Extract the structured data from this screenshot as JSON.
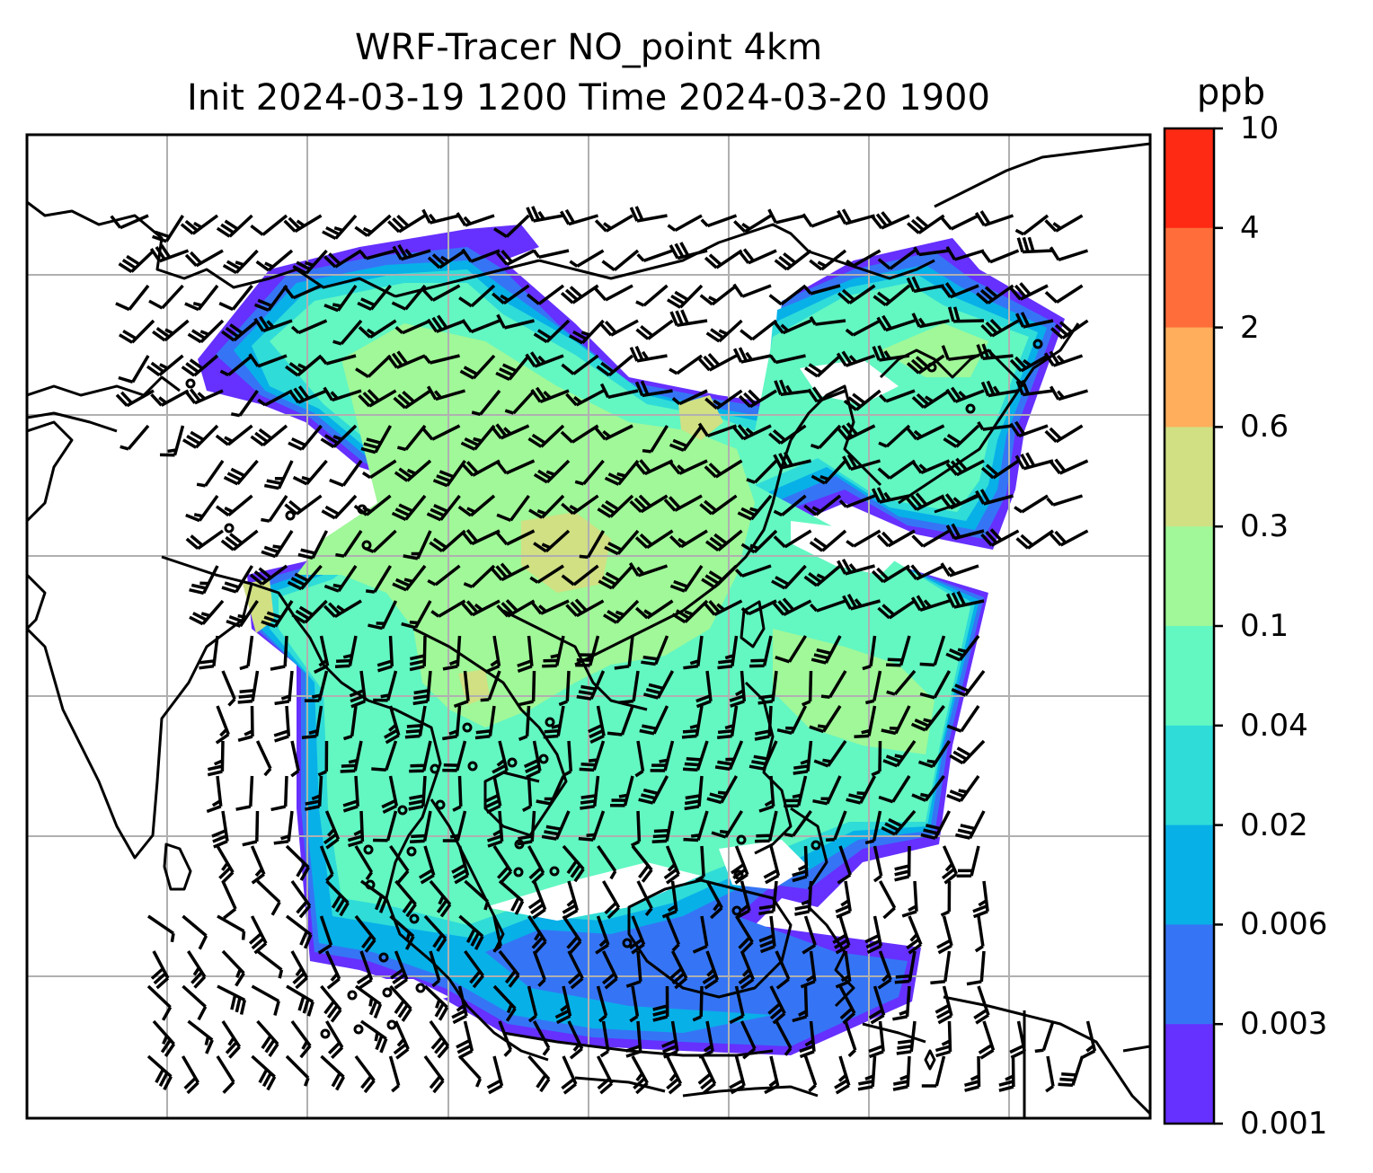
{
  "title": {
    "line1": "WRF-Tracer NO_point 4km",
    "line2": "Init 2024-03-19 1200 Time 2024-03-20 1900"
  },
  "colorbar": {
    "unit": "ppb",
    "ticks": [
      "10",
      "4",
      "2",
      "0.6",
      "0.3",
      "0.1",
      "0.04",
      "0.02",
      "0.006",
      "0.003",
      "0.001"
    ],
    "colors": [
      "#ff2a14",
      "#ff6e3a",
      "#ffae5c",
      "#d0e083",
      "#a0f898",
      "#63f7c2",
      "#2fdcd8",
      "#08b0e8",
      "#3575f5",
      "#6630ff"
    ]
  },
  "map": {
    "gridlines": true,
    "coastline_color": "#000000",
    "grid_color": "#b0b0b0",
    "wind_barbs": true
  }
}
